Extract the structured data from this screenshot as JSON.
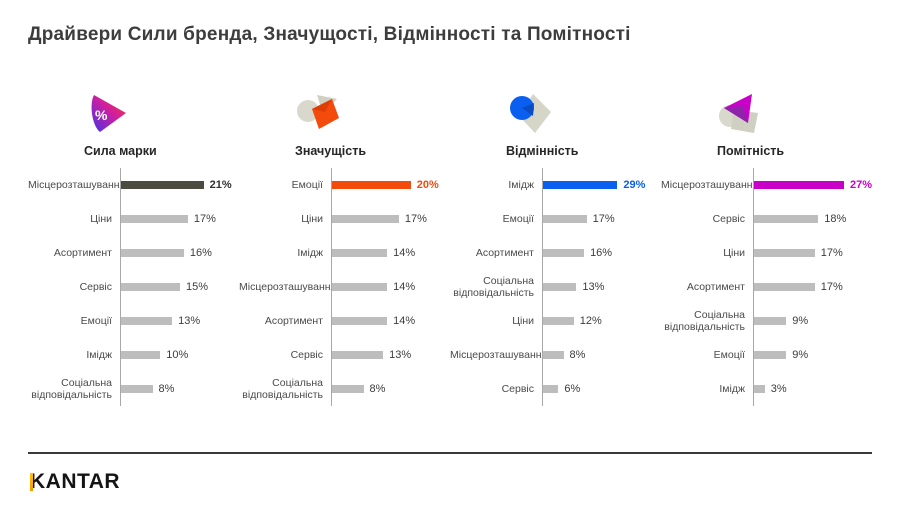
{
  "title": "Драйвери Сили бренда, Значущості, Відмінності та Помітності",
  "footer": {
    "logo_text": "KANTAR"
  },
  "colors": {
    "bar_default": "#bdbdbd",
    "axis_line": "#a8a8a8",
    "strength_accent": "#4b4b41",
    "meaningful_accent": "#f24b0c",
    "different_accent": "#0b5ff0",
    "salient_accent": "#c800c8"
  },
  "chart_data": [
    {
      "type": "bar",
      "orientation": "horizontal",
      "title": "Сила марки",
      "icon": "percent-cone-icon",
      "categories": [
        "Місцерозташування",
        "Ціни",
        "Асортимент",
        "Сервіс",
        "Емоції",
        "Імідж",
        "Соціальна відповідальність"
      ],
      "values": [
        21,
        17,
        16,
        15,
        13,
        10,
        8
      ],
      "value_suffix": "%",
      "xlim": [
        0,
        30
      ],
      "highlight_index": 0,
      "highlight_color": "#4b4b41",
      "highlight_value_color": "#303030"
    },
    {
      "type": "bar",
      "orientation": "horizontal",
      "title": "Значущість",
      "icon": "meaningful-icon",
      "categories": [
        "Емоції",
        "Ціни",
        "Імідж",
        "Місцерозташування",
        "Асортимент",
        "Сервіс",
        "Соціальна відповідальність"
      ],
      "values": [
        20,
        17,
        14,
        14,
        14,
        13,
        8
      ],
      "value_suffix": "%",
      "xlim": [
        0,
        30
      ],
      "highlight_index": 0,
      "highlight_color": "#f24b0c",
      "highlight_value_color": "#f24b0c"
    },
    {
      "type": "bar",
      "orientation": "horizontal",
      "title": "Відмінність",
      "icon": "different-icon",
      "categories": [
        "Імідж",
        "Емоції",
        "Асортимент",
        "Соціальна відповідальність",
        "Ціни",
        "Місцерозташування",
        "Сервіс"
      ],
      "values": [
        29,
        17,
        16,
        13,
        12,
        8,
        6
      ],
      "value_suffix": "%",
      "xlim": [
        0,
        46
      ],
      "highlight_index": 0,
      "highlight_color": "#0b5ff0",
      "highlight_value_color": "#0b5ff0"
    },
    {
      "type": "bar",
      "orientation": "horizontal",
      "title": "Помітність",
      "icon": "salient-icon",
      "categories": [
        "Місцерозташування",
        "Сервіс",
        "Ціни",
        "Асортимент",
        "Соціальна відповідальність",
        "Емоції",
        "Імідж"
      ],
      "values": [
        27,
        18,
        17,
        17,
        9,
        9,
        3
      ],
      "value_suffix": "%",
      "xlim": [
        0,
        33
      ],
      "highlight_index": 0,
      "highlight_color": "#c800c8",
      "highlight_value_color": "#c800c8"
    }
  ]
}
